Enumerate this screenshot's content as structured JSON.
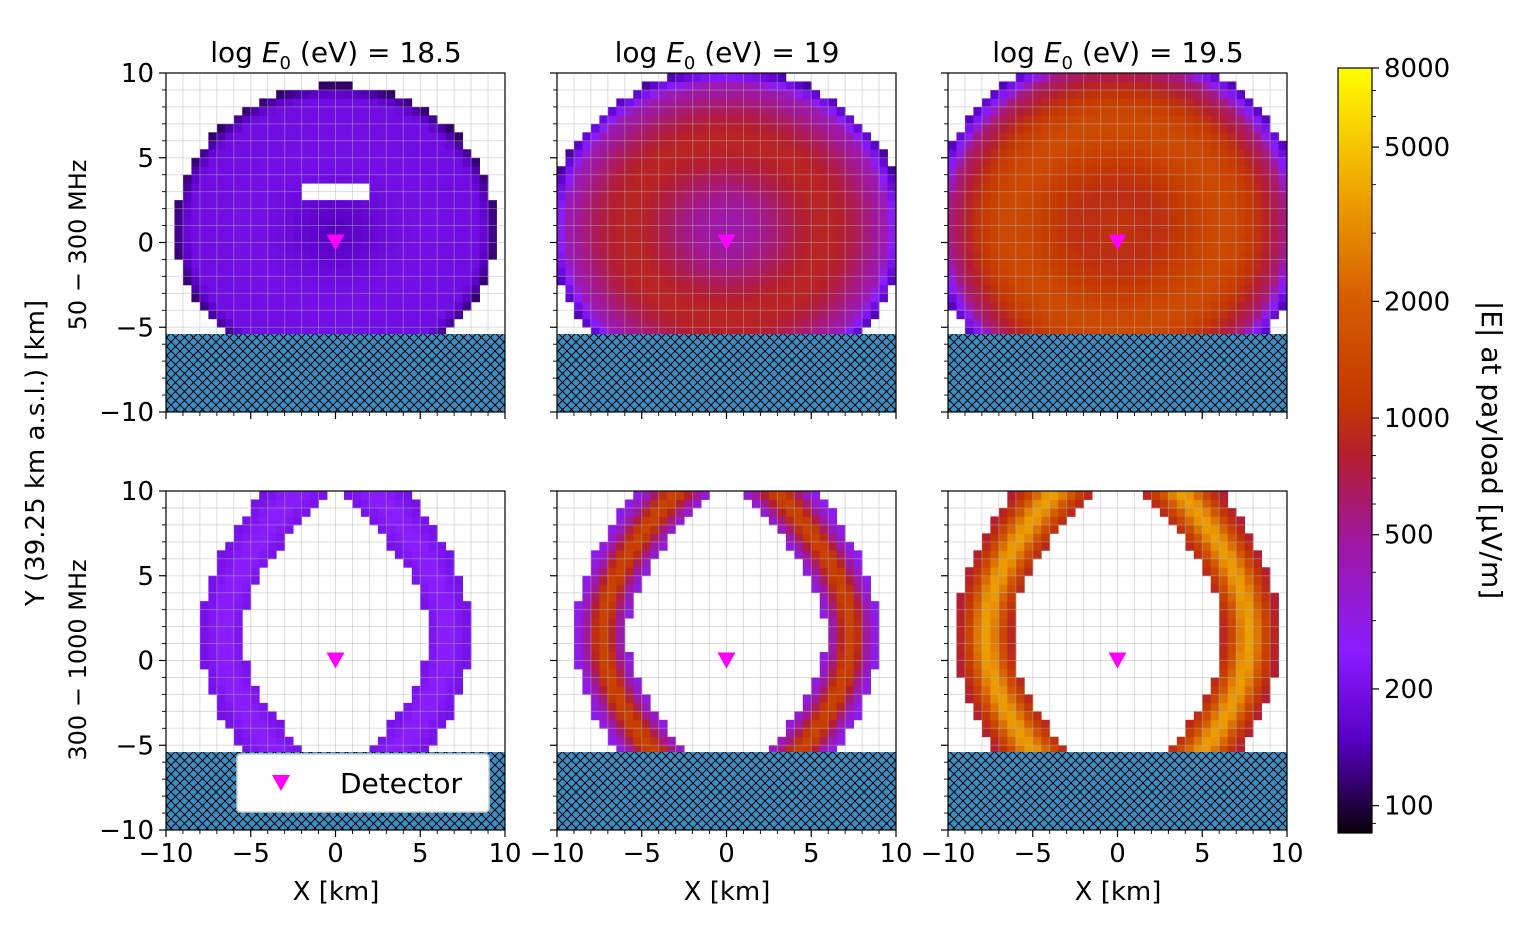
{
  "chart_data": {
    "type": "heatmap",
    "panel_titles": [
      "log E0 (eV) = 18.5",
      "log E0 (eV) = 19",
      "log E0 (eV) = 19.5"
    ],
    "energies": [
      "18.5",
      "19",
      "19.5"
    ],
    "title_prefix": "log ",
    "title_symbol": "E",
    "title_subscript": "0",
    "title_suffix": " (eV) = ",
    "row_labels": [
      "50 − 300 MHz",
      "300 − 1000 MHz"
    ],
    "shared_ylabel": "Y (39.25 km a.s.l.) [km]",
    "xlabel": "X [km]",
    "xlim": [
      -10,
      10
    ],
    "ylim": [
      -10,
      10
    ],
    "xticks": [
      -10,
      -5,
      0,
      5,
      10
    ],
    "yticks": [
      10,
      5,
      0,
      -5,
      -10
    ],
    "grid_step_km": 1,
    "hatched_region": {
      "y_from": -10,
      "y_to": -5.4,
      "color": "#3a8fc4"
    },
    "detector": {
      "x": 0,
      "y": 0,
      "marker": "down-triangle",
      "color": "#ff00ff",
      "label": "Detector"
    },
    "legend_location": "lower-left of bottom-left panel",
    "colorbar": {
      "label": "|E| at payload [µV/m]",
      "scale": "log",
      "range": [
        85,
        8000
      ],
      "ticks": [
        100,
        200,
        500,
        1000,
        2000,
        5000,
        8000
      ],
      "colormap": "gnuplot",
      "colormap_stops": [
        {
          "v": 85,
          "color": "#0a000a"
        },
        {
          "v": 150,
          "color": "#5a00c8"
        },
        {
          "v": 250,
          "color": "#8a1cff"
        },
        {
          "v": 500,
          "color": "#a0189a"
        },
        {
          "v": 800,
          "color": "#b51e2e"
        },
        {
          "v": 1100,
          "color": "#c43800"
        },
        {
          "v": 2000,
          "color": "#d65c00"
        },
        {
          "v": 3500,
          "color": "#eb9a00"
        },
        {
          "v": 5000,
          "color": "#f5c400"
        },
        {
          "v": 8000,
          "color": "#ffff00"
        }
      ]
    },
    "panels": [
      {
        "row": 0,
        "col": 0,
        "band": "50 − 300 MHz",
        "energy": "18.5",
        "pattern": "disk",
        "rx": 9.5,
        "ry": 8.5,
        "cy": 0.8,
        "cut_y": -5.4,
        "ring_center": 0.45,
        "ring_width": 0.22,
        "v_inner": 140,
        "v_ring": 230,
        "v_outer": 190,
        "v_edge": 110,
        "hole": {
          "x0": -1.8,
          "x1": 1.8,
          "y0": 2.5,
          "y1": 3.5
        }
      },
      {
        "row": 0,
        "col": 1,
        "band": "50 − 300 MHz",
        "energy": "19",
        "pattern": "disk",
        "rx": 10.5,
        "ry": 9.5,
        "cy": 0.8,
        "cut_y": -5.4,
        "ring_center": 0.58,
        "ring_width": 0.25,
        "v_inner": 420,
        "v_ring": 1150,
        "v_outer": 260,
        "v_edge": 130
      },
      {
        "row": 0,
        "col": 2,
        "band": "50 − 300 MHz",
        "energy": "19.5",
        "pattern": "disk",
        "rx": 11.0,
        "ry": 10.5,
        "cy": 1.0,
        "cut_y": -5.4,
        "ring_center": 0.62,
        "ring_width": 0.22,
        "v_inner": 1050,
        "v_ring": 3000,
        "v_outer": 330,
        "v_edge": 140
      },
      {
        "row": 1,
        "col": 0,
        "band": "300 − 1000 MHz",
        "energy": "18.5",
        "pattern": "ring",
        "rx": 7.5,
        "ry": 6.0,
        "cy": 1.5,
        "ring_center": 0.88,
        "ring_width": 0.22,
        "cut_y": -5.4,
        "v_ring": 260,
        "v_edge": 200
      },
      {
        "row": 1,
        "col": 1,
        "band": "300 − 1000 MHz",
        "energy": "19",
        "pattern": "ring",
        "rx": 8.5,
        "ry": 6.5,
        "cy": 1.5,
        "ring_center": 0.86,
        "ring_width": 0.24,
        "cut_y": -5.4,
        "v_ring": 1300,
        "v_edge": 250
      },
      {
        "row": 1,
        "col": 2,
        "band": "300 − 1000 MHz",
        "energy": "19.5",
        "pattern": "ring",
        "rx": 9.0,
        "ry": 7.0,
        "cy": 1.5,
        "ring_center": 0.86,
        "ring_width": 0.24,
        "cut_y": -5.4,
        "v_ring": 3600,
        "v_edge": 700
      }
    ]
  }
}
